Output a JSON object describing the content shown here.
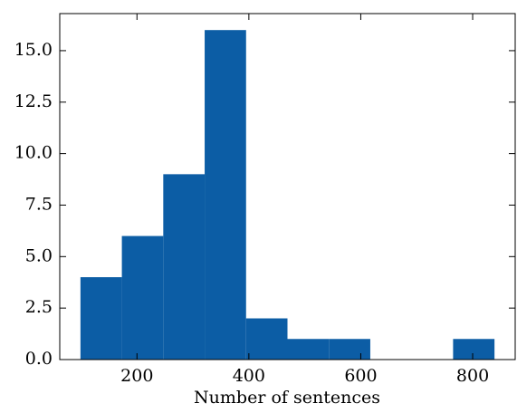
{
  "chart_data": {
    "type": "histogram",
    "xlabel": "Number of sentences",
    "bins": [
      99,
      173,
      247,
      321,
      395,
      469,
      543,
      617,
      691,
      765,
      839
    ],
    "values": [
      4,
      6,
      9,
      16,
      2,
      1,
      1,
      0,
      0,
      1
    ],
    "color": "#0C5DA5",
    "xlim": [
      62,
      876
    ],
    "xticks": [
      200,
      400,
      600,
      800
    ],
    "ylim": [
      0,
      16.8
    ],
    "yticks": [
      {
        "value": 0,
        "label": "0.0"
      },
      2.5,
      {
        "value": 5,
        "label": "5.0"
      },
      7.5,
      {
        "value": 10,
        "label": "10.0"
      },
      12.5,
      {
        "value": 15,
        "label": "15.0"
      }
    ],
    "grid": false
  }
}
